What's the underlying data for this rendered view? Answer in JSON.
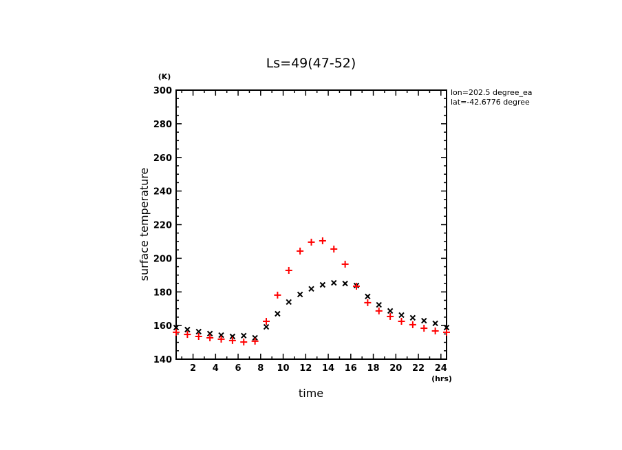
{
  "chart_data": {
    "type": "scatter",
    "title": "Ls=49(47-52)",
    "xlabel": "time",
    "ylabel": "surface temperature",
    "xunit": "(hrs)",
    "yunit": "(K)",
    "xlim": [
      0.5,
      24.5
    ],
    "ylim": [
      140,
      300
    ],
    "xticks": [
      2,
      4,
      6,
      8,
      10,
      12,
      14,
      16,
      18,
      20,
      22,
      24
    ],
    "yticks": [
      140,
      160,
      180,
      200,
      220,
      240,
      260,
      280,
      300
    ],
    "grid": false,
    "annotations": [
      "lon=202.5 degree_ea",
      "lat=-42.6776 degree"
    ],
    "x": [
      0.5,
      1.5,
      2.5,
      3.5,
      4.5,
      5.5,
      6.5,
      7.5,
      8.5,
      9.5,
      10.5,
      11.5,
      12.5,
      13.5,
      14.5,
      15.5,
      16.5,
      17.5,
      18.5,
      19.5,
      20.5,
      21.5,
      22.5,
      23.5,
      24.5
    ],
    "series": [
      {
        "name": "black-x",
        "marker": "x",
        "color": "#000000",
        "values": [
          158.8,
          157.6,
          156.4,
          155.2,
          154.3,
          153.5,
          154.0,
          152.7,
          159.2,
          167.0,
          174.0,
          178.5,
          181.8,
          184.2,
          185.4,
          185.0,
          183.8,
          177.3,
          172.3,
          168.7,
          166.2,
          164.6,
          162.9,
          161.3,
          158.8
        ]
      },
      {
        "name": "red-plus",
        "marker": "+",
        "color": "#ff0000",
        "values": [
          156.0,
          154.7,
          153.5,
          152.7,
          151.9,
          151.1,
          150.2,
          150.7,
          162.5,
          178.1,
          192.8,
          204.3,
          209.6,
          210.4,
          205.5,
          196.5,
          183.4,
          173.6,
          168.7,
          165.4,
          162.5,
          160.5,
          158.4,
          156.8,
          156.0
        ]
      }
    ]
  }
}
